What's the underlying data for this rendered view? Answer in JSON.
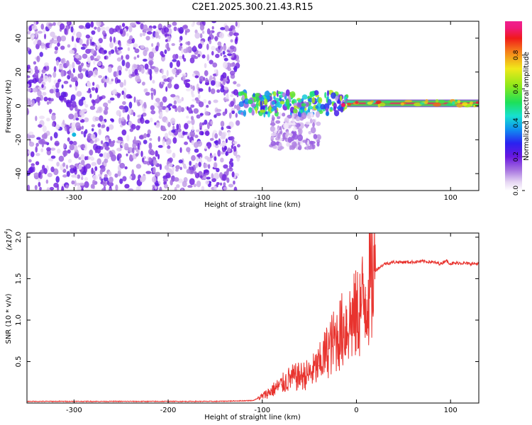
{
  "title": "C2E1.2025.300.21.43.R15",
  "chart_data": [
    {
      "type": "heatmap",
      "name": "spectrogram",
      "xlabel": "Height of straight line (km)",
      "ylabel": "Frequency (Hz)",
      "xlim": [
        -350,
        130
      ],
      "ylim": [
        -50,
        50
      ],
      "xticks": [
        -300,
        -200,
        -100,
        0,
        100
      ],
      "xtick_labels": [
        "-300",
        "-200",
        "-100",
        "0",
        "100"
      ],
      "yticks": [
        -40,
        -20,
        0,
        20,
        40
      ],
      "ytick_labels": [
        "-40",
        "-20",
        "0",
        "20",
        "40"
      ],
      "colorbar": {
        "label": "Normalized spectral amplitude",
        "range": [
          0,
          1
        ],
        "ticks": [
          0.0,
          0.2,
          0.4,
          0.6,
          0.8
        ],
        "tick_labels": [
          "0.0",
          "0.2",
          "0.4",
          "0.6",
          "0.8"
        ],
        "colormap": "rainbow-white"
      },
      "regions": [
        {
          "description": "broadband noise",
          "x_range": [
            -350,
            -125
          ],
          "freq_range": [
            -50,
            50
          ],
          "amplitude": 0.15
        },
        {
          "description": "signal emergence",
          "x_range": [
            -125,
            -10
          ],
          "freq_range": [
            -5,
            8
          ],
          "amplitude": 0.45
        },
        {
          "description": "faint sideband",
          "x_range": [
            -90,
            -40
          ],
          "freq_range": [
            -25,
            -5
          ],
          "amplitude": 0.1
        },
        {
          "description": "steady carrier",
          "x_range": [
            -10,
            130
          ],
          "freq_center": 1.5,
          "freq_width": 2,
          "amplitude": 0.95
        }
      ],
      "highlight_points": [
        {
          "x": -300,
          "y": -17,
          "amplitude": 0.4
        },
        {
          "x": -14,
          "y": 0.5,
          "amplitude": 0.95
        }
      ]
    },
    {
      "type": "line",
      "name": "snr",
      "xlabel": "Height of straight line (km)",
      "ylabel": "SNR (10 * v/v)",
      "y_scale_label": "(x10",
      "y_scale_exponent": "4",
      "xlim": [
        -350,
        130
      ],
      "ylim": [
        0,
        2.05
      ],
      "xticks": [
        -300,
        -200,
        -100,
        0,
        100
      ],
      "xtick_labels": [
        "-300",
        "-200",
        "-100",
        "0",
        "100"
      ],
      "yticks": [
        0.5,
        1.0,
        1.5,
        2.0
      ],
      "ytick_labels": [
        "0.5",
        "1.0",
        "1.5",
        "2.0"
      ],
      "series": [
        {
          "name": "SNR",
          "color": "#e8332e",
          "x": [
            -350,
            -300,
            -250,
            -200,
            -150,
            -110,
            -100,
            -90,
            -80,
            -70,
            -60,
            -50,
            -40,
            -30,
            -20,
            -10,
            0,
            10,
            20,
            30,
            40,
            50,
            60,
            70,
            80,
            90,
            95,
            100,
            110,
            120,
            130
          ],
          "y": [
            0.02,
            0.02,
            0.02,
            0.02,
            0.02,
            0.03,
            0.08,
            0.15,
            0.22,
            0.3,
            0.32,
            0.35,
            0.45,
            0.65,
            0.8,
            0.95,
            1.05,
            1.3,
            1.6,
            1.68,
            1.7,
            1.7,
            1.7,
            1.71,
            1.7,
            1.68,
            1.72,
            1.68,
            1.69,
            1.68,
            1.68
          ]
        }
      ]
    }
  ]
}
